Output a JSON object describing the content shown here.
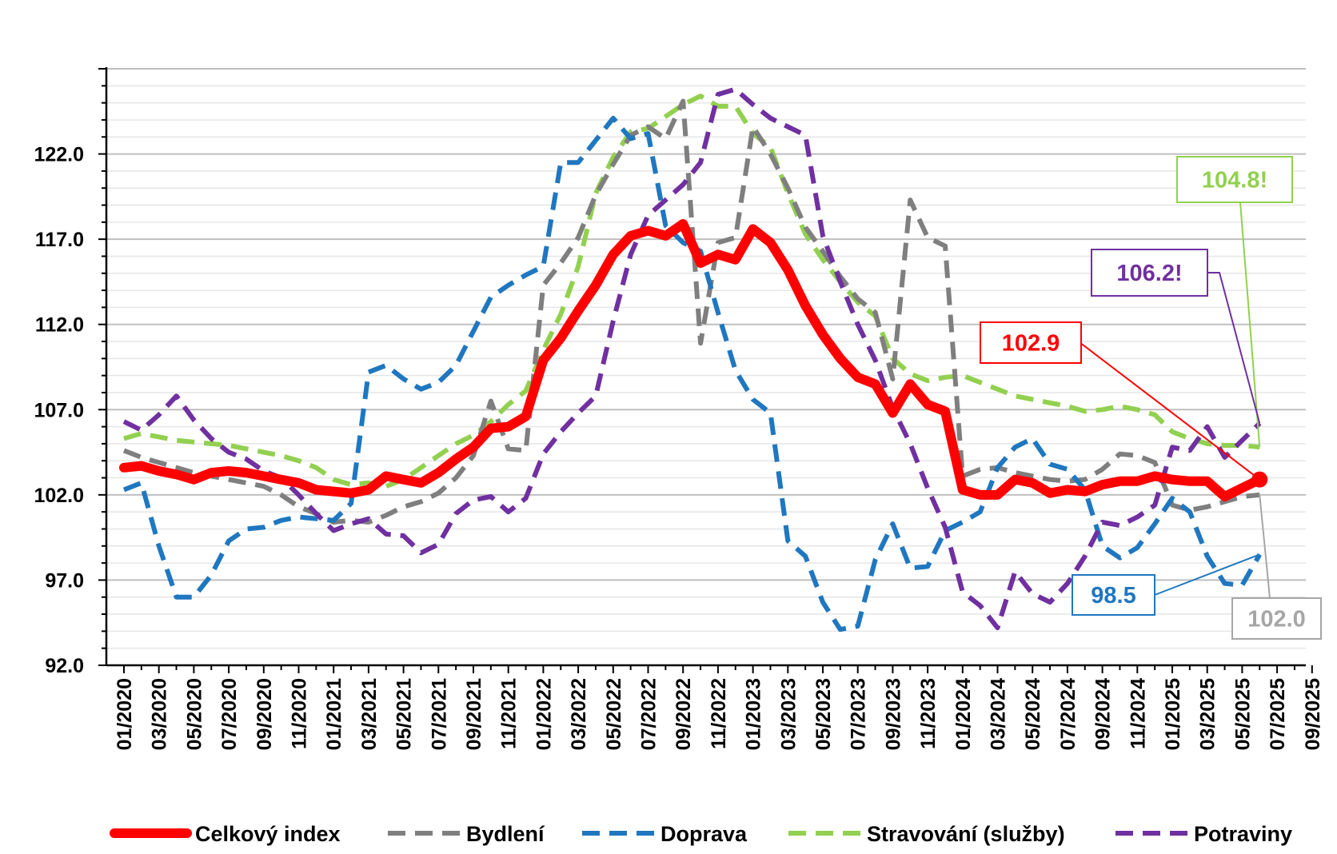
{
  "chart_data": {
    "type": "line",
    "title": "",
    "xlabel": "",
    "ylabel": "",
    "ylim": [
      92,
      127
    ],
    "y_ticks": [
      "92.0",
      "97.0",
      "102.0",
      "107.0",
      "112.0",
      "117.0",
      "122.0"
    ],
    "x_ticks": [
      "01/2020",
      "03/2020",
      "05/2020",
      "07/2020",
      "09/2020",
      "11/2020",
      "01/2021",
      "03/2021",
      "05/2021",
      "07/2021",
      "09/2021",
      "11/2021",
      "01/2022",
      "03/2022",
      "05/2022",
      "07/2022",
      "09/2022",
      "11/2022",
      "01/2023",
      "03/2023",
      "05/2023",
      "07/2023",
      "09/2023",
      "11/2023",
      "01/2024",
      "03/2024",
      "05/2024",
      "07/2024",
      "09/2024",
      "11/2024",
      "01/2025",
      "03/2025",
      "05/2025",
      "07/2025",
      "09/2025"
    ],
    "x_start": "01/2020",
    "grid": true,
    "legend_position": "bottom",
    "series": [
      {
        "name": "Celkový index",
        "color": "#ff0000",
        "style": "solid",
        "values": [
          103.6,
          103.7,
          103.4,
          103.2,
          102.9,
          103.3,
          103.4,
          103.3,
          103.1,
          102.9,
          102.7,
          102.3,
          102.2,
          102.1,
          102.3,
          103.1,
          102.9,
          102.7,
          103.3,
          104.1,
          104.8,
          105.9,
          106.0,
          106.6,
          109.9,
          111.2,
          112.8,
          114.3,
          116.1,
          117.2,
          117.5,
          117.2,
          117.9,
          115.6,
          116.1,
          115.8,
          117.6,
          116.8,
          115.2,
          113.1,
          111.4,
          110.0,
          108.9,
          108.5,
          106.8,
          108.5,
          107.3,
          106.9,
          102.3,
          102.0,
          102.0,
          102.9,
          102.7,
          102.1,
          102.3,
          102.2,
          102.6,
          102.8,
          102.8,
          103.1,
          102.9,
          102.8,
          102.8,
          101.9,
          102.4,
          102.9
        ]
      },
      {
        "name": "Bydlení",
        "color": "#7f7f7f",
        "style": "dashed",
        "values": [
          104.6,
          104.2,
          103.9,
          103.6,
          103.3,
          103.1,
          102.9,
          102.7,
          102.5,
          102.0,
          101.3,
          100.9,
          100.4,
          100.5,
          100.4,
          100.8,
          101.3,
          101.6,
          102.1,
          103.0,
          104.3,
          107.5,
          104.7,
          104.6,
          114.3,
          115.6,
          117.1,
          119.6,
          121.4,
          123.1,
          123.6,
          122.9,
          125.1,
          110.9,
          116.8,
          117.1,
          123.6,
          122.0,
          120.0,
          117.7,
          116.3,
          114.8,
          113.5,
          112.7,
          108.8,
          119.3,
          117.1,
          116.6,
          103.1,
          103.5,
          103.6,
          103.3,
          103.1,
          102.9,
          102.8,
          102.9,
          103.5,
          104.4,
          104.3,
          103.9,
          101.4,
          101.1,
          101.3,
          101.6,
          101.9,
          102.0
        ]
      },
      {
        "name": "Doprava",
        "color": "#1f77c0",
        "style": "dashed",
        "values": [
          102.3,
          102.7,
          99.0,
          96.0,
          96.0,
          97.3,
          99.3,
          100.0,
          100.1,
          100.5,
          100.7,
          100.6,
          100.5,
          101.5,
          109.2,
          109.6,
          108.8,
          108.2,
          108.6,
          109.6,
          111.6,
          113.6,
          114.3,
          114.9,
          115.4,
          121.5,
          121.5,
          122.8,
          124.1,
          122.9,
          123.2,
          117.8,
          116.8,
          116.3,
          112.7,
          109.3,
          107.6,
          106.8,
          99.3,
          98.4,
          95.7,
          94.1,
          94.3,
          98.2,
          100.3,
          97.7,
          97.8,
          99.9,
          100.4,
          101.0,
          103.6,
          104.8,
          105.3,
          103.8,
          103.5,
          102.3,
          99.0,
          98.3,
          98.9,
          100.3,
          101.8,
          101.0,
          98.4,
          96.8,
          96.7,
          98.5
        ]
      },
      {
        "name": "Stravování (služby)",
        "color": "#92d050",
        "style": "dashed",
        "values": [
          105.3,
          105.6,
          105.4,
          105.2,
          105.1,
          105.0,
          104.9,
          104.7,
          104.5,
          104.3,
          104.0,
          103.6,
          102.9,
          102.6,
          102.7,
          102.5,
          102.9,
          103.6,
          104.3,
          105.0,
          105.5,
          106.3,
          107.3,
          108.1,
          110.5,
          112.6,
          115.4,
          119.7,
          121.8,
          123.3,
          123.5,
          124.2,
          124.9,
          125.4,
          124.8,
          124.8,
          123.2,
          122.4,
          119.7,
          117.3,
          115.8,
          114.5,
          113.3,
          112.5,
          110.0,
          109.1,
          108.7,
          108.9,
          109.0,
          108.6,
          108.2,
          107.8,
          107.6,
          107.4,
          107.2,
          106.9,
          107.0,
          107.2,
          107.0,
          106.7,
          105.7,
          105.3,
          105.0,
          104.9,
          104.9,
          104.8
        ]
      },
      {
        "name": "Potraviny",
        "color": "#7030a0",
        "style": "dashed",
        "values": [
          106.3,
          105.8,
          106.7,
          107.8,
          106.4,
          105.3,
          104.5,
          104.1,
          103.4,
          103.0,
          102.0,
          100.9,
          99.9,
          100.3,
          100.6,
          99.7,
          99.6,
          98.6,
          99.1,
          100.9,
          101.7,
          101.9,
          101.0,
          101.8,
          104.4,
          105.7,
          106.8,
          107.8,
          112.2,
          116.1,
          118.4,
          119.3,
          120.2,
          121.5,
          125.5,
          125.8,
          124.9,
          124.1,
          123.6,
          123.1,
          117.2,
          114.5,
          112.0,
          109.9,
          107.1,
          105.0,
          102.4,
          100.1,
          96.3,
          95.5,
          94.2,
          97.5,
          96.2,
          95.7,
          96.8,
          98.4,
          100.4,
          100.2,
          100.7,
          101.4,
          104.8,
          104.6,
          106.0,
          104.2,
          105.2,
          106.2
        ]
      }
    ],
    "callouts": [
      {
        "series": "Stravování (služby)",
        "text": "104.8!",
        "color": "#92d050"
      },
      {
        "series": "Potraviny",
        "text": "106.2!",
        "color": "#7030a0"
      },
      {
        "series": "Celkový index",
        "text": "102.9",
        "color": "#ff0000"
      },
      {
        "series": "Doprava",
        "text": "98.5",
        "color": "#1f77c0"
      },
      {
        "series": "Bydlení",
        "text": "102.0",
        "color": "#a6a6a6"
      }
    ]
  }
}
